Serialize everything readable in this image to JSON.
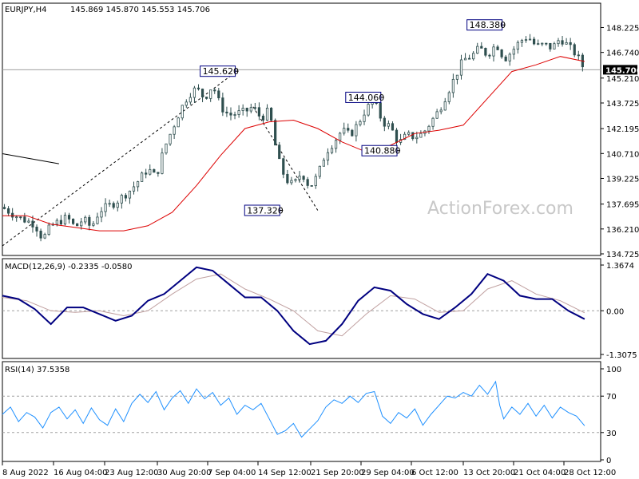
{
  "header": {
    "symbol": "EURJPY,H4",
    "ohlc": "145.869 145.870 145.553 145.706"
  },
  "watermark": "ActionForex.com",
  "colors": {
    "candle": "#2f4f4f",
    "ma": "#dd0000",
    "macd_line": "#000080",
    "macd_signal": "#c0a0a0",
    "rsi": "#1e90ff",
    "frame": "#000000",
    "current_price": "#a0a0a0",
    "current_price_box": "#000000"
  },
  "chart_data": [
    {
      "type": "candlestick",
      "panel": "price",
      "ylim": [
        134.725,
        149.2
      ],
      "yticks": [
        "148.225",
        "146.740",
        "145.210",
        "143.725",
        "142.195",
        "140.710",
        "139.225",
        "137.695",
        "136.210",
        "134.725"
      ],
      "current_price": "145.706",
      "x": [
        "8 Aug 2022",
        "16 Aug 04:00",
        "23 Aug 12:00",
        "30 Aug 20:00",
        "7 Sep 04:00",
        "14 Sep 12:00",
        "21 Sep 20:00",
        "29 Sep 04:00",
        "6 Oct 12:00",
        "13 Oct 20:00",
        "21 Oct 04:00",
        "28 Oct 12:00"
      ],
      "close_path": [
        [
          0,
          137.5
        ],
        [
          2,
          136.9
        ],
        [
          4,
          136.5
        ],
        [
          5,
          135.6
        ],
        [
          6,
          136.4
        ],
        [
          8,
          136.9
        ],
        [
          9,
          136.3
        ],
        [
          10,
          136.8
        ],
        [
          11,
          136.3
        ],
        [
          12,
          137.3
        ],
        [
          14,
          137.8
        ],
        [
          16,
          138.6
        ],
        [
          18,
          139.8
        ],
        [
          19,
          139.3
        ],
        [
          20,
          141.0
        ],
        [
          22,
          143.3
        ],
        [
          23,
          144.2
        ],
        [
          24,
          144.6
        ],
        [
          25,
          144.0
        ],
        [
          26,
          144.8
        ],
        [
          27,
          143.5
        ],
        [
          28,
          143.0
        ],
        [
          30,
          143.2
        ],
        [
          31,
          143.5
        ],
        [
          32,
          142.8
        ],
        [
          33,
          143.3
        ],
        [
          34,
          140.5
        ],
        [
          35,
          139.2
        ],
        [
          36,
          138.8
        ],
        [
          37,
          139.6
        ],
        [
          38,
          138.7
        ],
        [
          39,
          139.4
        ],
        [
          40,
          140.8
        ],
        [
          41,
          141.4
        ],
        [
          42,
          142.1
        ],
        [
          43,
          141.8
        ],
        [
          44,
          142.5
        ],
        [
          45,
          143.4
        ],
        [
          46,
          143.8
        ],
        [
          47,
          142.6
        ],
        [
          48,
          142.3
        ],
        [
          49,
          141.3
        ],
        [
          50,
          141.8
        ],
        [
          51,
          141.7
        ],
        [
          52,
          141.9
        ],
        [
          54,
          143.3
        ],
        [
          55,
          144.3
        ],
        [
          56,
          145.3
        ],
        [
          57,
          146.3
        ],
        [
          58,
          146.5
        ],
        [
          59,
          147.0
        ],
        [
          60,
          146.6
        ],
        [
          61,
          147.2
        ],
        [
          61.5,
          147.0
        ],
        [
          62,
          146.3
        ],
        [
          63,
          146.8
        ],
        [
          64,
          147.4
        ],
        [
          65,
          147.7
        ],
        [
          66,
          147.1
        ],
        [
          67,
          147.2
        ],
        [
          68,
          147.0
        ],
        [
          69,
          147.6
        ],
        [
          70,
          147.1
        ],
        [
          71,
          146.6
        ],
        [
          72,
          145.7
        ]
      ],
      "ma_path": [
        [
          0,
          137.0
        ],
        [
          3,
          137.0
        ],
        [
          6,
          136.5
        ],
        [
          9,
          136.3
        ],
        [
          12,
          136.1
        ],
        [
          15,
          136.1
        ],
        [
          18,
          136.4
        ],
        [
          21,
          137.2
        ],
        [
          24,
          138.8
        ],
        [
          27,
          140.6
        ],
        [
          30,
          142.2
        ],
        [
          33,
          142.6
        ],
        [
          36,
          142.7
        ],
        [
          39,
          142.2
        ],
        [
          42,
          141.4
        ],
        [
          45,
          140.8
        ],
        [
          48,
          141.2
        ],
        [
          51,
          141.9
        ],
        [
          54,
          142.1
        ],
        [
          57,
          142.4
        ],
        [
          60,
          144.0
        ],
        [
          63,
          145.6
        ],
        [
          66,
          146.0
        ],
        [
          69,
          146.5
        ],
        [
          72,
          146.2
        ]
      ],
      "labels": [
        {
          "text": "145.620",
          "x": 29,
          "y": 145.62
        },
        {
          "text": "137.320",
          "x": 34.5,
          "y": 137.32
        },
        {
          "text": "144.060",
          "x": 47,
          "y": 144.06
        },
        {
          "text": "140.880",
          "x": 49,
          "y": 140.88
        },
        {
          "text": "148.380",
          "x": 62,
          "y": 148.38
        }
      ],
      "trendline": [
        [
          0,
          140.7
        ],
        [
          7,
          140.1
        ]
      ],
      "channel_line": [
        [
          0,
          135.2
        ],
        [
          29,
          145.62
        ]
      ],
      "projection_line": [
        [
          31,
          143.5
        ],
        [
          39,
          137.32
        ]
      ]
    },
    {
      "type": "line",
      "panel": "macd",
      "title": "MACD(12,26,9) -0.2335 -0.0580",
      "ylim": [
        -1.3075,
        1.3674
      ],
      "yticks": [
        "1.3674",
        "0.00",
        "-1.3075"
      ],
      "series": [
        {
          "values": [
            [
              0,
              0.45
            ],
            [
              2,
              0.35
            ],
            [
              4,
              0.05
            ],
            [
              6,
              -0.4
            ],
            [
              8,
              0.1
            ],
            [
              10,
              0.1
            ],
            [
              12,
              -0.1
            ],
            [
              14,
              -0.3
            ],
            [
              16,
              -0.15
            ],
            [
              18,
              0.3
            ],
            [
              20,
              0.5
            ],
            [
              22,
              0.9
            ],
            [
              24,
              1.3
            ],
            [
              26,
              1.2
            ],
            [
              28,
              0.8
            ],
            [
              30,
              0.4
            ],
            [
              32,
              0.4
            ],
            [
              34,
              0.0
            ],
            [
              36,
              -0.6
            ],
            [
              38,
              -1.0
            ],
            [
              40,
              -0.9
            ],
            [
              42,
              -0.4
            ],
            [
              44,
              0.3
            ],
            [
              46,
              0.7
            ],
            [
              48,
              0.6
            ],
            [
              50,
              0.2
            ],
            [
              52,
              -0.1
            ],
            [
              54,
              -0.25
            ],
            [
              56,
              0.1
            ],
            [
              58,
              0.5
            ],
            [
              60,
              1.1
            ],
            [
              62,
              0.9
            ],
            [
              64,
              0.45
            ],
            [
              66,
              0.35
            ],
            [
              68,
              0.35
            ],
            [
              70,
              0.0
            ],
            [
              72,
              -0.25
            ]
          ]
        },
        {
          "values": [
            [
              0,
              0.4
            ],
            [
              3,
              0.3
            ],
            [
              6,
              0.0
            ],
            [
              9,
              -0.05
            ],
            [
              12,
              0.0
            ],
            [
              15,
              -0.15
            ],
            [
              18,
              0.0
            ],
            [
              21,
              0.5
            ],
            [
              24,
              0.95
            ],
            [
              27,
              1.1
            ],
            [
              30,
              0.65
            ],
            [
              33,
              0.35
            ],
            [
              36,
              0.0
            ],
            [
              39,
              -0.6
            ],
            [
              42,
              -0.75
            ],
            [
              45,
              -0.1
            ],
            [
              48,
              0.45
            ],
            [
              51,
              0.35
            ],
            [
              54,
              -0.05
            ],
            [
              57,
              0.0
            ],
            [
              60,
              0.65
            ],
            [
              63,
              0.9
            ],
            [
              66,
              0.5
            ],
            [
              69,
              0.3
            ],
            [
              72,
              -0.06
            ]
          ]
        }
      ]
    },
    {
      "type": "line",
      "panel": "rsi",
      "title": "RSI(14) 37.5358",
      "ylim": [
        0,
        100
      ],
      "yticks": [
        "100",
        "70",
        "30",
        "0"
      ],
      "levels": [
        70,
        30
      ],
      "series": [
        {
          "values": [
            [
              0,
              50
            ],
            [
              1,
              58
            ],
            [
              2,
              42
            ],
            [
              3,
              52
            ],
            [
              4,
              47
            ],
            [
              5,
              35
            ],
            [
              6,
              52
            ],
            [
              7,
              58
            ],
            [
              8,
              45
            ],
            [
              9,
              55
            ],
            [
              10,
              40
            ],
            [
              11,
              57
            ],
            [
              12,
              44
            ],
            [
              13,
              38
            ],
            [
              14,
              56
            ],
            [
              15,
              42
            ],
            [
              16,
              62
            ],
            [
              17,
              72
            ],
            [
              18,
              63
            ],
            [
              19,
              75
            ],
            [
              20,
              55
            ],
            [
              21,
              68
            ],
            [
              22,
              76
            ],
            [
              23,
              62
            ],
            [
              24,
              78
            ],
            [
              25,
              67
            ],
            [
              26,
              74
            ],
            [
              27,
              60
            ],
            [
              28,
              68
            ],
            [
              29,
              50
            ],
            [
              30,
              60
            ],
            [
              31,
              55
            ],
            [
              32,
              62
            ],
            [
              33,
              45
            ],
            [
              34,
              28
            ],
            [
              35,
              32
            ],
            [
              36,
              40
            ],
            [
              37,
              25
            ],
            [
              38,
              34
            ],
            [
              39,
              43
            ],
            [
              40,
              58
            ],
            [
              41,
              66
            ],
            [
              42,
              62
            ],
            [
              43,
              70
            ],
            [
              44,
              63
            ],
            [
              45,
              73
            ],
            [
              46,
              75
            ],
            [
              47,
              48
            ],
            [
              48,
              40
            ],
            [
              49,
              52
            ],
            [
              50,
              46
            ],
            [
              51,
              56
            ],
            [
              52,
              38
            ],
            [
              53,
              50
            ],
            [
              54,
              60
            ],
            [
              55,
              70
            ],
            [
              56,
              68
            ],
            [
              57,
              74
            ],
            [
              58,
              70
            ],
            [
              59,
              82
            ],
            [
              60,
              72
            ],
            [
              61,
              86
            ],
            [
              61.5,
              60
            ],
            [
              62,
              45
            ],
            [
              63,
              58
            ],
            [
              64,
              50
            ],
            [
              65,
              62
            ],
            [
              66,
              48
            ],
            [
              67,
              60
            ],
            [
              68,
              46
            ],
            [
              69,
              58
            ],
            [
              70,
              52
            ],
            [
              71,
              48
            ],
            [
              72,
              37.5
            ]
          ]
        }
      ]
    }
  ]
}
